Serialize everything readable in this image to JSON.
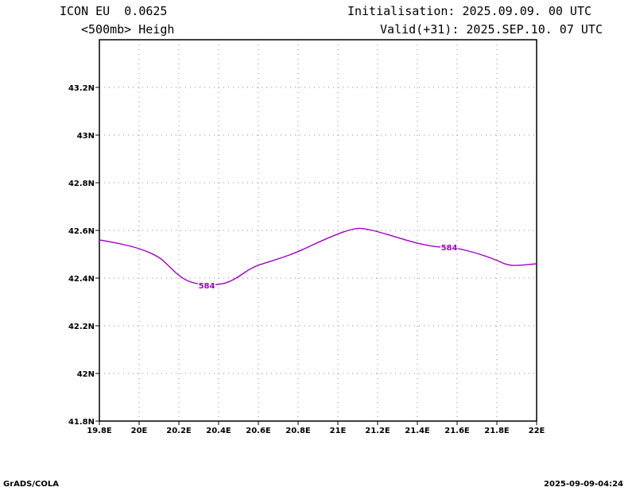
{
  "header": {
    "model": "ICON EU  0.0625",
    "field": "<500mb> Heigh",
    "init": "Initialisation: 2025.09.09. 00 UTC",
    "valid": "Valid(+31): 2025.SEP.10. 07 UTC"
  },
  "footer": {
    "left": "GrADS/COLA",
    "right": "2025-09-09-04:24"
  },
  "chart_data": {
    "type": "line",
    "grid": true,
    "xlim": [
      19.8,
      22.0
    ],
    "ylim": [
      41.8,
      43.4
    ],
    "xticks": [
      {
        "v": 19.8,
        "label": "19.8E"
      },
      {
        "v": 20.0,
        "label": "20E"
      },
      {
        "v": 20.2,
        "label": "20.2E"
      },
      {
        "v": 20.4,
        "label": "20.4E"
      },
      {
        "v": 20.6,
        "label": "20.6E"
      },
      {
        "v": 20.8,
        "label": "20.8E"
      },
      {
        "v": 21.0,
        "label": "21E"
      },
      {
        "v": 21.2,
        "label": "21.2E"
      },
      {
        "v": 21.4,
        "label": "21.4E"
      },
      {
        "v": 21.6,
        "label": "21.6E"
      },
      {
        "v": 21.8,
        "label": "21.8E"
      },
      {
        "v": 22.0,
        "label": "22E"
      }
    ],
    "yticks": [
      {
        "v": 41.8,
        "label": "41.8N"
      },
      {
        "v": 42.0,
        "label": "42N"
      },
      {
        "v": 42.2,
        "label": "42.2N"
      },
      {
        "v": 42.4,
        "label": "42.4N"
      },
      {
        "v": 42.6,
        "label": "42.6N"
      },
      {
        "v": 42.8,
        "label": "42.8N"
      },
      {
        "v": 43.0,
        "label": "43N"
      },
      {
        "v": 43.2,
        "label": "43.2N"
      }
    ],
    "series": [
      {
        "name": "584",
        "color": "#a000c8",
        "x": [
          19.8,
          19.9,
          20.0,
          20.1,
          20.15,
          20.2,
          20.25,
          20.3,
          20.35,
          20.4,
          20.45,
          20.5,
          20.55,
          20.6,
          20.7,
          20.8,
          20.9,
          21.0,
          21.05,
          21.1,
          21.15,
          21.2,
          21.3,
          21.4,
          21.5,
          21.55,
          21.6,
          21.7,
          21.8,
          21.85,
          21.9,
          22.0
        ],
        "y": [
          42.56,
          42.545,
          42.525,
          42.49,
          42.45,
          42.41,
          42.385,
          42.375,
          42.37,
          42.373,
          42.382,
          42.405,
          42.435,
          42.455,
          42.48,
          42.51,
          42.55,
          42.585,
          42.6,
          42.61,
          42.605,
          42.595,
          42.57,
          42.545,
          42.53,
          42.53,
          42.525,
          42.505,
          42.475,
          42.455,
          42.452,
          42.46
        ]
      }
    ],
    "contour_labels": [
      {
        "text": "584",
        "x": 20.34,
        "y": 42.37
      },
      {
        "text": "584",
        "x": 21.56,
        "y": 42.53
      }
    ]
  }
}
